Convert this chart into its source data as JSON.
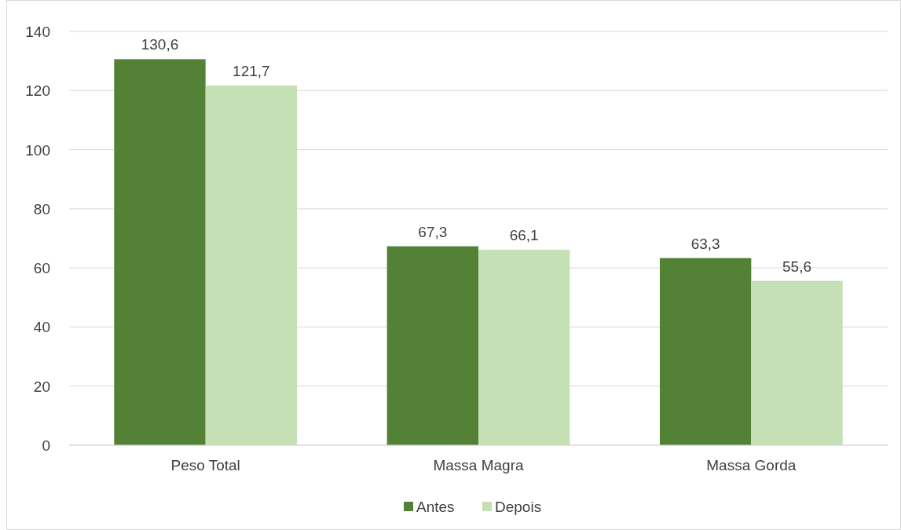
{
  "chart_data": {
    "type": "bar",
    "categories": [
      "Peso Total",
      "Massa Magra",
      "Massa Gorda"
    ],
    "series": [
      {
        "name": "Antes",
        "color": "#538135",
        "values": [
          130.6,
          67.3,
          63.3
        ],
        "value_labels": [
          "130,6",
          "67,3",
          "63,3"
        ]
      },
      {
        "name": "Depois",
        "color": "#c5e0b4",
        "values": [
          121.7,
          66.1,
          55.6
        ],
        "value_labels": [
          "121,7",
          "66,1",
          "55,6"
        ]
      }
    ],
    "ylim": [
      0,
      140
    ],
    "yticks": [
      0,
      20,
      40,
      60,
      80,
      100,
      120,
      140
    ],
    "grid": "y",
    "legend": "bottom"
  }
}
